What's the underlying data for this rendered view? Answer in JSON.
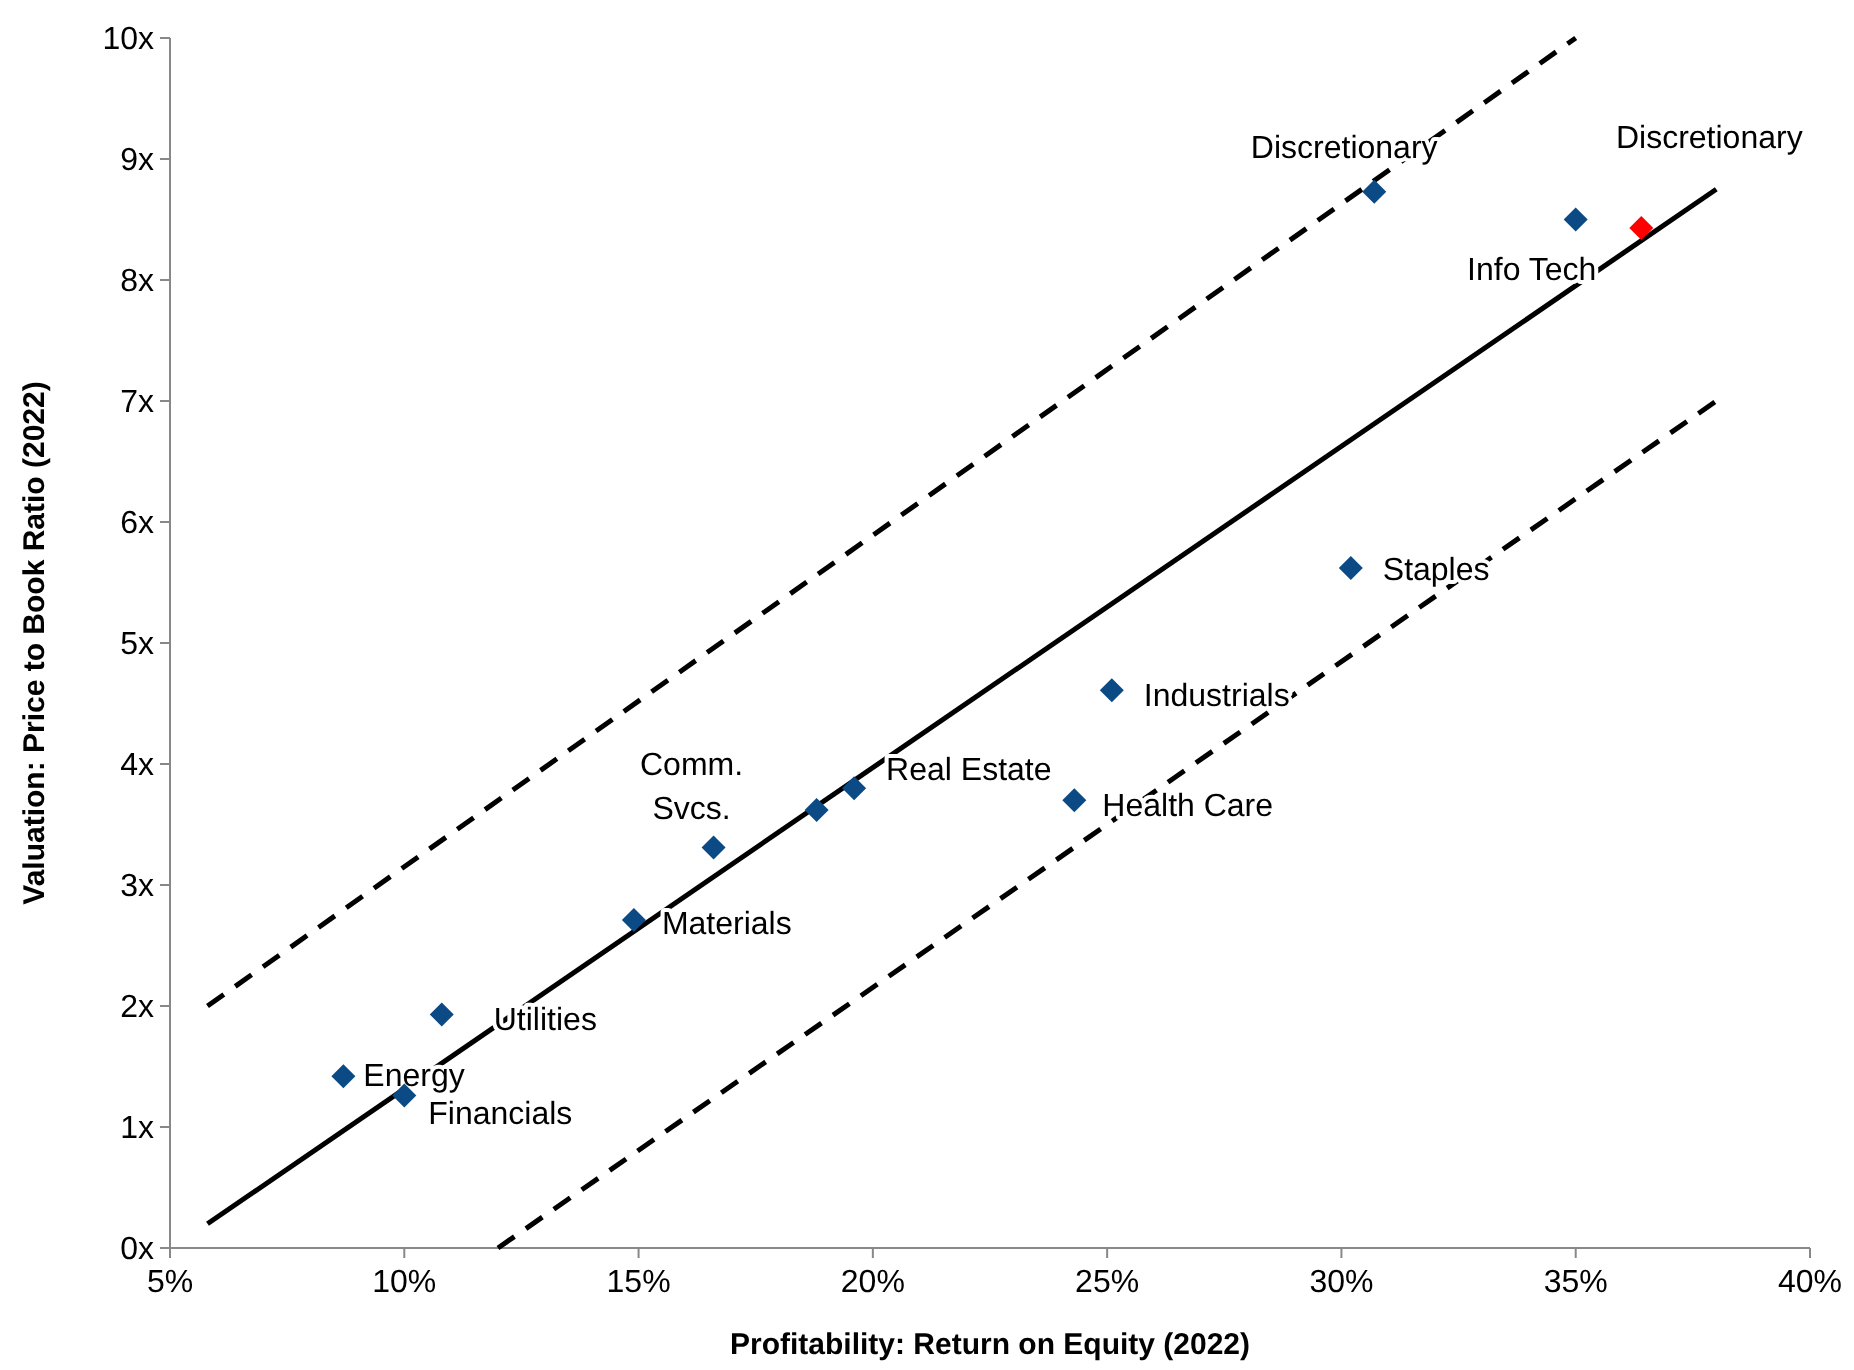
{
  "chart_data": {
    "type": "scatter",
    "xlabel": "Profitability: Return on Equity (2022)",
    "ylabel": "Valuation: Price to Book Ratio (2022)",
    "xlim": [
      5,
      40
    ],
    "ylim": [
      0,
      10
    ],
    "xticks": [
      {
        "value": 5,
        "label": "5%"
      },
      {
        "value": 10,
        "label": "10%"
      },
      {
        "value": 15,
        "label": "15%"
      },
      {
        "value": 20,
        "label": "20%"
      },
      {
        "value": 25,
        "label": "25%"
      },
      {
        "value": 30,
        "label": "30%"
      },
      {
        "value": 35,
        "label": "35%"
      },
      {
        "value": 40,
        "label": "40%"
      }
    ],
    "yticks": [
      {
        "value": 0,
        "label": "0x"
      },
      {
        "value": 1,
        "label": "1x"
      },
      {
        "value": 2,
        "label": "2x"
      },
      {
        "value": 3,
        "label": "3x"
      },
      {
        "value": 4,
        "label": "4x"
      },
      {
        "value": 5,
        "label": "5x"
      },
      {
        "value": 6,
        "label": "6x"
      },
      {
        "value": 7,
        "label": "7x"
      },
      {
        "value": 8,
        "label": "8x"
      },
      {
        "value": 9,
        "label": "9x"
      },
      {
        "value": 10,
        "label": "10x"
      }
    ],
    "grid": false,
    "marker": "diamond",
    "series": [
      {
        "name": "Energy",
        "color": "#0b4a85",
        "x": [
          8.7
        ],
        "values": [
          1.42
        ]
      },
      {
        "name": "Financials",
        "color": "#0b4a85",
        "x": [
          10.0
        ],
        "values": [
          1.26
        ]
      },
      {
        "name": "Utilities",
        "color": "#0b4a85",
        "x": [
          10.8
        ],
        "values": [
          1.93
        ]
      },
      {
        "name": "Materials",
        "color": "#0b4a85",
        "x": [
          14.9
        ],
        "values": [
          2.71
        ]
      },
      {
        "name": "Comm. Svcs.",
        "color": "#0b4a85",
        "x": [
          16.6
        ],
        "values": [
          3.31
        ]
      },
      {
        "color": "#0b4a85",
        "x": [
          18.8
        ],
        "values": [
          3.62
        ]
      },
      {
        "name": "Real Estate",
        "color": "#0b4a85",
        "x": [
          19.6
        ],
        "values": [
          3.8
        ]
      },
      {
        "name": "Health Care",
        "color": "#0b4a85",
        "x": [
          24.3
        ],
        "values": [
          3.7
        ]
      },
      {
        "name": "Industrials",
        "color": "#0b4a85",
        "x": [
          25.1
        ],
        "values": [
          4.61
        ]
      },
      {
        "name": "Staples",
        "color": "#0b4a85",
        "x": [
          30.2
        ],
        "values": [
          5.62
        ]
      },
      {
        "name": "Discretionary",
        "color": "#0b4a85",
        "x": [
          30.7
        ],
        "values": [
          8.73
        ]
      },
      {
        "name": "Info Tech",
        "color": "#0b4a85",
        "x": [
          35.0
        ],
        "values": [
          8.5
        ]
      },
      {
        "name": "Discretionary",
        "color": "#ff0000",
        "x": [
          36.4
        ],
        "values": [
          8.43
        ]
      },
      {
        "type": "line",
        "color": "#000000",
        "line_style": "solid",
        "marker": "none",
        "x": [
          5.8,
          38
        ],
        "values": [
          0.2,
          8.75
        ]
      },
      {
        "type": "line",
        "color": "#000000",
        "line_style": "dashed",
        "marker": "none",
        "x": [
          5.8,
          35
        ],
        "values": [
          2.0,
          10
        ]
      },
      {
        "type": "line",
        "color": "#000000",
        "line_style": "dashed",
        "marker": "none",
        "x": [
          12,
          38
        ],
        "values": [
          0,
          7
        ]
      }
    ]
  }
}
